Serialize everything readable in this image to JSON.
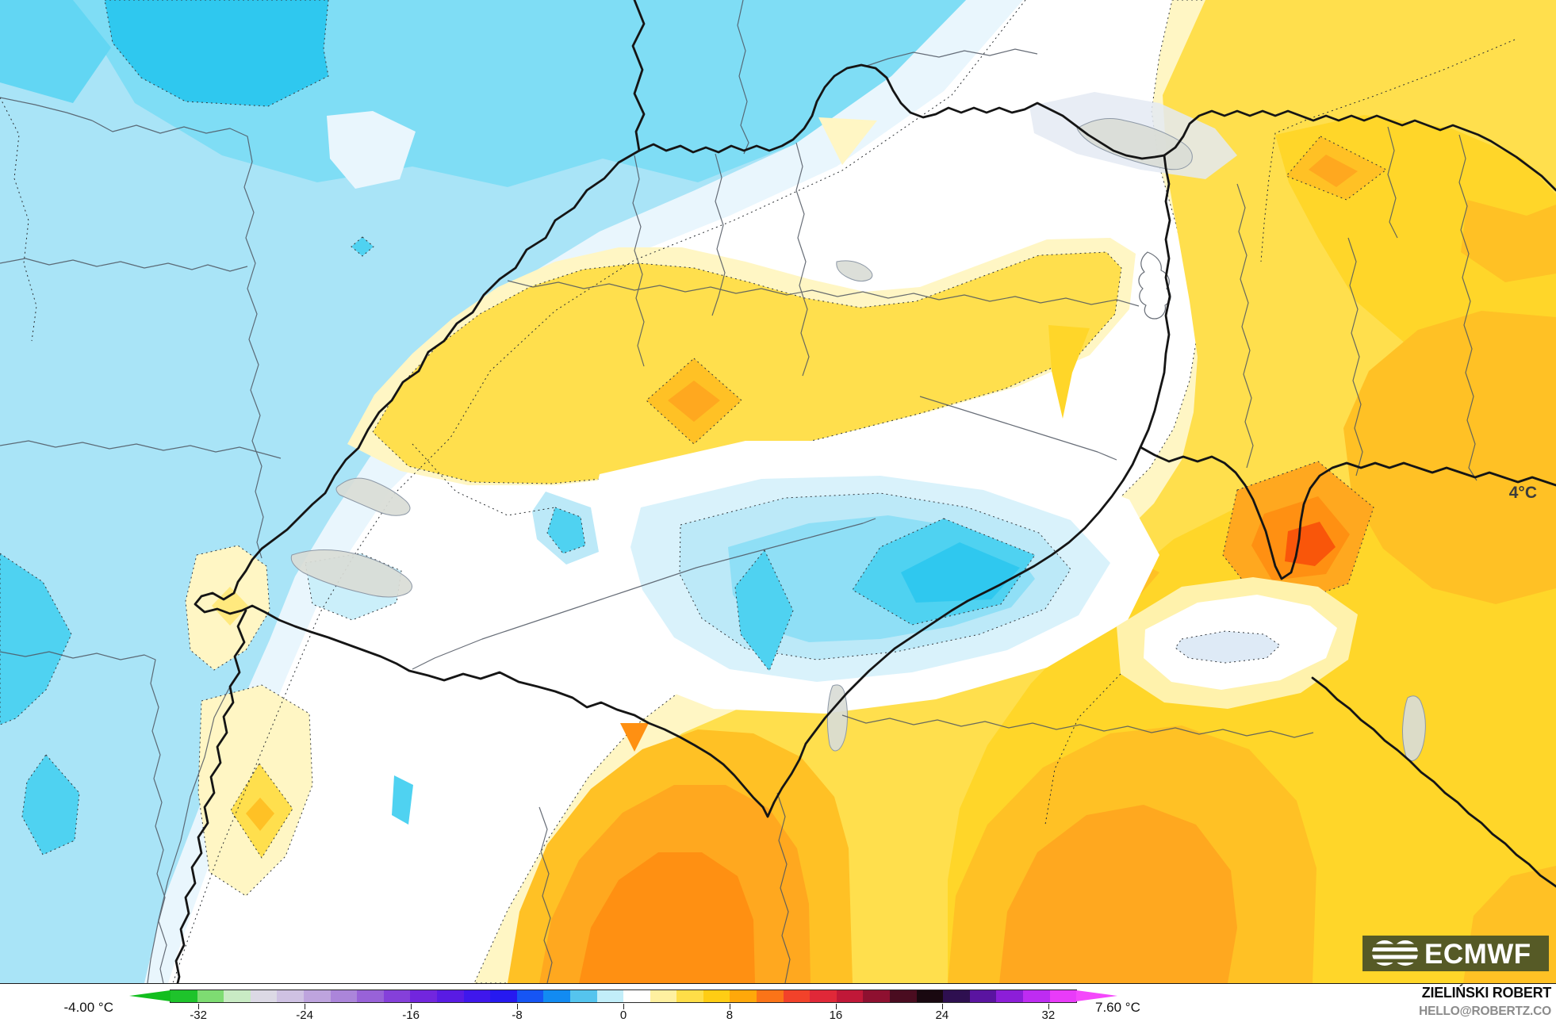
{
  "map": {
    "contour_label": "4°C",
    "logo_text": "ECMWF",
    "region": "Switzerland and surrounding Alps",
    "field_colors": {
      "cold_deep": "#2FC8EF",
      "cold_mid": "#7FDDF5",
      "cold_light": "#A9E4F7",
      "neutral": "#FFFFFF",
      "warm_pale": "#FFF6C4",
      "warm_main": "#FFDF4D",
      "warm_strong": "#FFC125",
      "warm_deep": "#FF9012",
      "warm_core": "#F9560A"
    }
  },
  "legend": {
    "min_label": "-4.00 °C",
    "max_label": "7.60 °C",
    "unit": "°C",
    "domain": [
      -34.1,
      34.1
    ],
    "ticks": [
      -32,
      -24,
      -16,
      -8,
      0,
      8,
      16,
      24,
      32
    ],
    "arrow_left": "#12BE1E",
    "arrow_right": "#F448FB",
    "segments": [
      "#1EC32B",
      "#7EDC72",
      "#C9EBC4",
      "#DCD9E5",
      "#CFC2E3",
      "#BEA4DE",
      "#AB85DA",
      "#9862D8",
      "#8540DA",
      "#7226DE",
      "#591BE4",
      "#3F17EC",
      "#2619F0",
      "#1655F4",
      "#128BF2",
      "#55C4EE",
      "#C2EEF9",
      "#FFFFFE",
      "#FFF0A0",
      "#FFDE48",
      "#FFCD14",
      "#FFA80A",
      "#FB7418",
      "#F2422A",
      "#E02838",
      "#C01838",
      "#8E1030",
      "#4A0C20",
      "#190810",
      "#2E0F50",
      "#5A14A0",
      "#8C1ED8",
      "#BE2CF2",
      "#E93BF9"
    ]
  },
  "credit": {
    "name": "ZIELIŃSKI ROBERT",
    "email": "HELLO@ROBERTZ.CO"
  }
}
